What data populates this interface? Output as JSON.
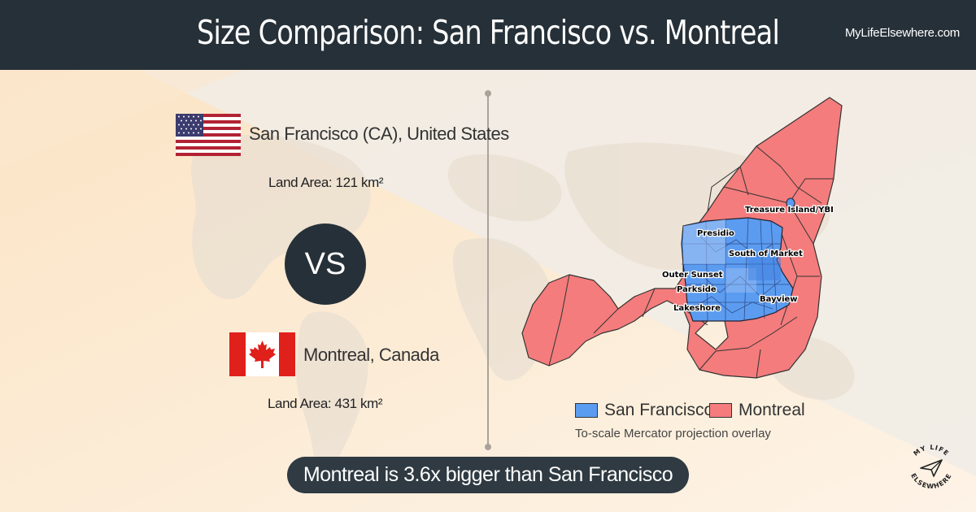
{
  "header": {
    "title": "Size Comparison: San Francisco vs. Montreal",
    "site": "MyLifeElsewhere.com"
  },
  "city1": {
    "name": "San Francisco (CA), United States",
    "land_area": "Land Area: 121 km²",
    "flag": "us-flag"
  },
  "vs_label": "VS",
  "city2": {
    "name": "Montreal, Canada",
    "land_area": "Land Area: 431 km²",
    "flag": "canada-flag"
  },
  "map": {
    "labels": [
      "Treasure Island/YBI",
      "Presidio",
      "South of Market",
      "Outer Sunset",
      "Parkside",
      "Lakeshore",
      "Bayview"
    ],
    "legend": [
      {
        "name": "San Francisco",
        "color": "#5b9cf0"
      },
      {
        "name": "Montreal",
        "color": "#f47c7c"
      }
    ],
    "caption": "To-scale Mercator projection overlay"
  },
  "verdict": "Montreal is 3.6x bigger than San Francisco",
  "logo_text": "MY LIFE ELSEWHERE",
  "colors": {
    "header_bg": "#263038",
    "sf_blue": "#5b9cf0",
    "montreal_red": "#f47c7c"
  }
}
